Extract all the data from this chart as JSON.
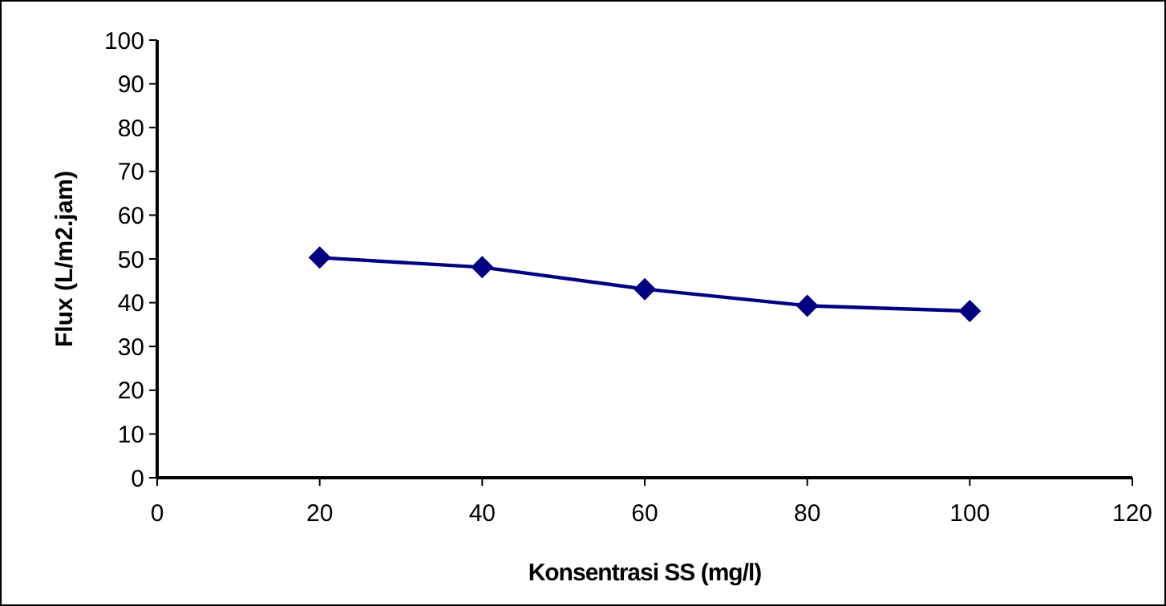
{
  "chart_data": {
    "type": "line",
    "xlabel": "Konsentrasi SS (mg/l)",
    "ylabel": "Flux (L/m2.jam)",
    "x": [
      20,
      40,
      60,
      80,
      100
    ],
    "series": [
      {
        "color": "#000080",
        "values": [
          50.3,
          48.1,
          43.1,
          39.3,
          38.1
        ]
      }
    ],
    "xlim": [
      0,
      120
    ],
    "xticks": [
      0,
      20,
      40,
      60,
      80,
      100,
      120
    ],
    "ylim": [
      0,
      100
    ],
    "yticks": [
      0,
      10,
      20,
      30,
      40,
      50,
      60,
      70,
      80,
      90,
      100
    ],
    "grid": false,
    "marker": "diamond",
    "line_style": "solid"
  }
}
